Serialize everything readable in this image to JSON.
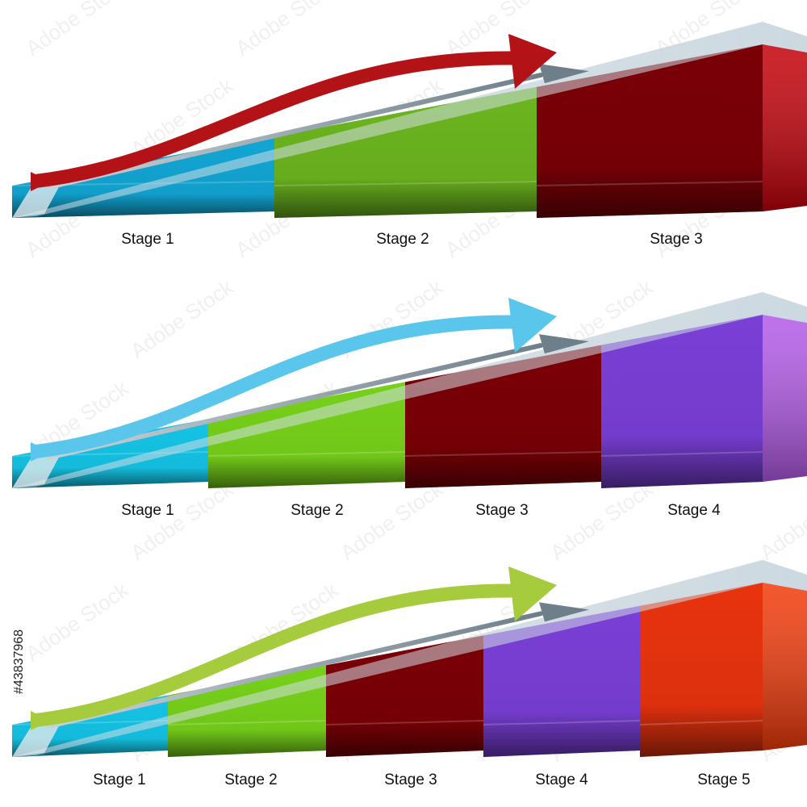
{
  "watermark": {
    "stock_id": "#43837968",
    "brand_text": "Adobe Stock"
  },
  "diagrams": [
    {
      "stages": [
        "Stage 1",
        "Stage 2",
        "Stage 3"
      ],
      "arrow_color": "#b31217",
      "segment_colors": [
        "#12a6d4",
        "#6cb51f",
        "#7a0006"
      ],
      "end_cap_color": "#c40009"
    },
    {
      "stages": [
        "Stage 1",
        "Stage 2",
        "Stage 3",
        "Stage 4"
      ],
      "arrow_color": "#5bc6ec",
      "segment_colors": [
        "#15c4e6",
        "#77d11a",
        "#7a0006",
        "#7a3fd6"
      ],
      "end_cap_color": "#b35ae8"
    },
    {
      "stages": [
        "Stage 1",
        "Stage 2",
        "Stage 3",
        "Stage 4",
        "Stage 5"
      ],
      "arrow_color": "#a6cc3d",
      "segment_colors": [
        "#15c4e6",
        "#77d11a",
        "#7a0006",
        "#7a3fd6",
        "#e8330e"
      ],
      "end_cap_color": "#f23a0a"
    }
  ]
}
